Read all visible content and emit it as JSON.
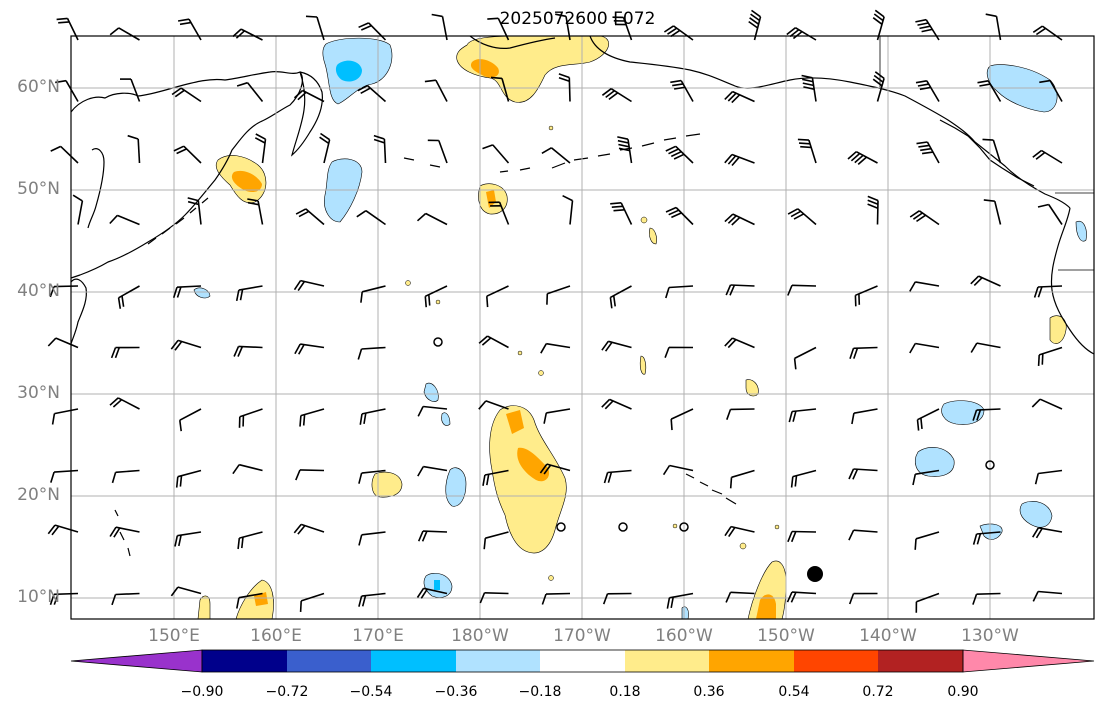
{
  "title": "2025072600 F072",
  "latitude_labels": [
    "60°N",
    "50°N",
    "40°N",
    "30°N",
    "20°N",
    "10°N"
  ],
  "longitude_labels": [
    "150°E",
    "160°E",
    "170°E",
    "180°W",
    "170°W",
    "160°W",
    "150°W",
    "140°W",
    "130°W"
  ],
  "colorbar": {
    "labels": [
      "−0.90",
      "−0.72",
      "−0.54",
      "−0.36",
      "−0.18",
      "0.18",
      "0.36",
      "0.54",
      "0.72",
      "0.90"
    ],
    "colors": [
      "#9932cc",
      "#00008b",
      "#3a5fcd",
      "#00bfff",
      "#b0e2ff",
      "#ffffff",
      "#ffec8b",
      "#ffa500",
      "#ff4500",
      "#b22222",
      "#ff88aa"
    ]
  },
  "colors": {
    "land_line": "#000000",
    "grid": "#b0b0b0",
    "text": "#808080"
  }
}
